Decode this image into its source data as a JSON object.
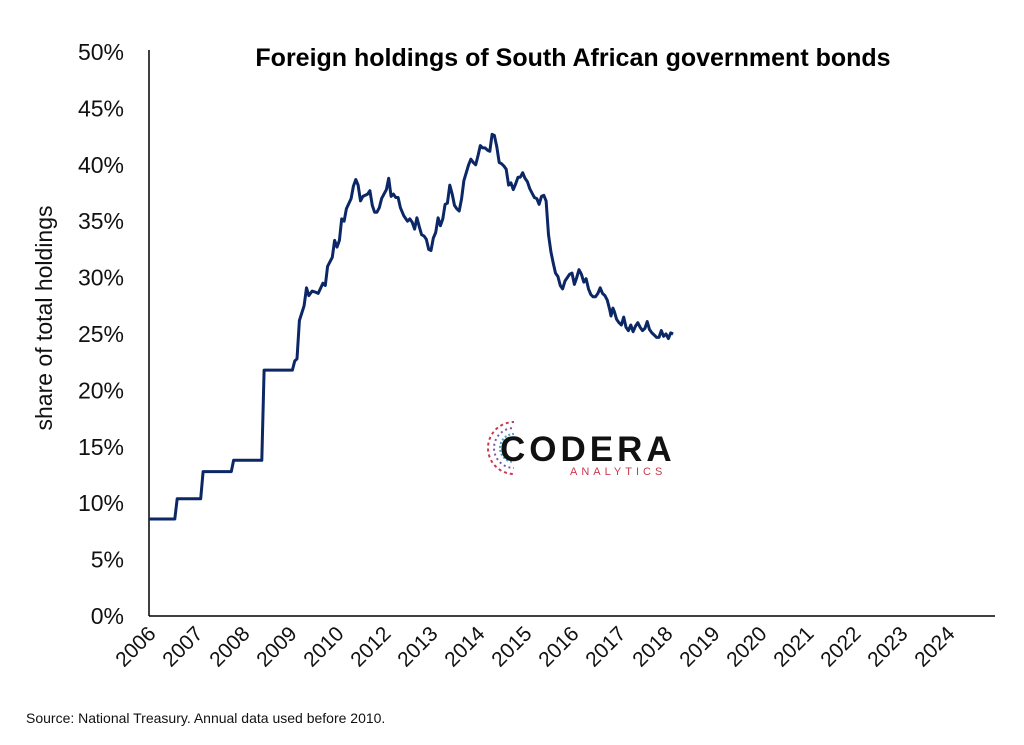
{
  "chart_data": {
    "type": "line",
    "title": "Foreign holdings of South African government bonds",
    "ylabel": "share of total holdings",
    "xlabel": "",
    "ylim": [
      0,
      50
    ],
    "y_ticks": [
      "0%",
      "5%",
      "10%",
      "15%",
      "20%",
      "25%",
      "30%",
      "35%",
      "40%",
      "45%",
      "50%"
    ],
    "x_ticks": [
      "2006",
      "2007",
      "2008",
      "2009",
      "2010",
      "2012",
      "2013",
      "2014",
      "2015",
      "2016",
      "2017",
      "2018",
      "2019",
      "2020",
      "2021",
      "2022",
      "2023",
      "2024"
    ],
    "grid": false,
    "legend": "none",
    "series": [
      {
        "color": "#0b2765",
        "points": [
          [
            0,
            8.6
          ],
          [
            0.55,
            8.6
          ],
          [
            0.6,
            10.4
          ],
          [
            1.1,
            10.4
          ],
          [
            1.15,
            12.8
          ],
          [
            1.75,
            12.8
          ],
          [
            1.8,
            13.8
          ],
          [
            2.4,
            13.8
          ],
          [
            2.45,
            21.8
          ],
          [
            3.05,
            21.8
          ],
          [
            3.1,
            22.6
          ],
          [
            3.15,
            22.8
          ],
          [
            3.2,
            26.2
          ],
          [
            3.3,
            27.5
          ],
          [
            3.35,
            29.1
          ],
          [
            3.4,
            28.4
          ],
          [
            3.47,
            28.8
          ],
          [
            3.55,
            28.7
          ],
          [
            3.6,
            28.6
          ],
          [
            3.7,
            29.5
          ],
          [
            3.75,
            29.3
          ],
          [
            3.8,
            31.0
          ],
          [
            3.9,
            31.8
          ],
          [
            3.95,
            33.3
          ],
          [
            4.0,
            32.7
          ],
          [
            4.05,
            33.3
          ],
          [
            4.1,
            35.2
          ],
          [
            4.15,
            35.0
          ],
          [
            4.2,
            36.1
          ],
          [
            4.3,
            37.0
          ],
          [
            4.35,
            38.1
          ],
          [
            4.4,
            38.7
          ],
          [
            4.45,
            38.2
          ],
          [
            4.5,
            36.8
          ],
          [
            4.55,
            37.2
          ],
          [
            4.65,
            37.4
          ],
          [
            4.7,
            37.7
          ],
          [
            4.75,
            36.4
          ],
          [
            4.8,
            35.8
          ],
          [
            4.85,
            35.8
          ],
          [
            4.9,
            36.2
          ],
          [
            4.95,
            37.0
          ],
          [
            5.05,
            37.8
          ],
          [
            5.1,
            38.8
          ],
          [
            5.15,
            37.2
          ],
          [
            5.2,
            37.4
          ],
          [
            5.25,
            37.1
          ],
          [
            5.3,
            37.1
          ],
          [
            5.35,
            36.2
          ],
          [
            5.42,
            35.5
          ],
          [
            5.5,
            35.0
          ],
          [
            5.55,
            35.2
          ],
          [
            5.6,
            34.9
          ],
          [
            5.65,
            34.3
          ],
          [
            5.7,
            35.3
          ],
          [
            5.75,
            34.5
          ],
          [
            5.8,
            33.8
          ],
          [
            5.85,
            33.7
          ],
          [
            5.9,
            33.4
          ],
          [
            5.95,
            32.5
          ],
          [
            6.0,
            32.4
          ],
          [
            6.05,
            33.5
          ],
          [
            6.1,
            34.0
          ],
          [
            6.15,
            35.3
          ],
          [
            6.2,
            34.6
          ],
          [
            6.25,
            35.2
          ],
          [
            6.3,
            36.5
          ],
          [
            6.35,
            36.6
          ],
          [
            6.4,
            38.2
          ],
          [
            6.45,
            37.4
          ],
          [
            6.5,
            36.4
          ],
          [
            6.55,
            36.1
          ],
          [
            6.6,
            35.9
          ],
          [
            6.65,
            37.0
          ],
          [
            6.7,
            38.6
          ],
          [
            6.8,
            40.0
          ],
          [
            6.85,
            40.5
          ],
          [
            6.9,
            40.2
          ],
          [
            6.95,
            40.0
          ],
          [
            7.0,
            40.8
          ],
          [
            7.05,
            41.7
          ],
          [
            7.1,
            41.5
          ],
          [
            7.15,
            41.5
          ],
          [
            7.2,
            41.3
          ],
          [
            7.25,
            41.2
          ],
          [
            7.3,
            42.7
          ],
          [
            7.35,
            42.6
          ],
          [
            7.4,
            41.6
          ],
          [
            7.45,
            40.2
          ],
          [
            7.5,
            40.1
          ],
          [
            7.55,
            39.9
          ],
          [
            7.6,
            39.6
          ],
          [
            7.65,
            38.2
          ],
          [
            7.7,
            38.4
          ],
          [
            7.75,
            37.8
          ],
          [
            7.8,
            38.3
          ],
          [
            7.85,
            38.9
          ],
          [
            7.9,
            38.9
          ],
          [
            7.95,
            39.3
          ],
          [
            8.0,
            38.8
          ],
          [
            8.05,
            38.5
          ],
          [
            8.1,
            37.9
          ],
          [
            8.15,
            37.5
          ],
          [
            8.2,
            37.1
          ],
          [
            8.25,
            37.0
          ],
          [
            8.3,
            36.5
          ],
          [
            8.35,
            37.2
          ],
          [
            8.4,
            37.3
          ],
          [
            8.45,
            36.8
          ],
          [
            8.5,
            33.8
          ],
          [
            8.55,
            32.3
          ],
          [
            8.6,
            31.3
          ],
          [
            8.65,
            30.4
          ],
          [
            8.7,
            30.1
          ],
          [
            8.75,
            29.3
          ],
          [
            8.8,
            29.0
          ],
          [
            8.85,
            29.7
          ],
          [
            8.9,
            30.0
          ],
          [
            8.95,
            30.3
          ],
          [
            9.0,
            30.4
          ],
          [
            9.05,
            29.4
          ],
          [
            9.1,
            30.0
          ],
          [
            9.15,
            30.7
          ],
          [
            9.2,
            30.3
          ],
          [
            9.25,
            29.6
          ],
          [
            9.3,
            29.9
          ],
          [
            9.35,
            29.0
          ],
          [
            9.4,
            28.5
          ],
          [
            9.45,
            28.3
          ],
          [
            9.5,
            28.3
          ],
          [
            9.55,
            28.6
          ],
          [
            9.6,
            29.1
          ],
          [
            9.65,
            28.6
          ],
          [
            9.7,
            28.4
          ],
          [
            9.75,
            28.0
          ],
          [
            9.8,
            27.2
          ],
          [
            9.83,
            26.6
          ],
          [
            9.87,
            27.3
          ],
          [
            9.9,
            27.0
          ],
          [
            9.95,
            26.3
          ],
          [
            10.0,
            26.0
          ],
          [
            10.05,
            25.8
          ],
          [
            10.1,
            26.5
          ],
          [
            10.15,
            25.6
          ],
          [
            10.2,
            25.3
          ],
          [
            10.25,
            25.8
          ],
          [
            10.3,
            25.2
          ],
          [
            10.35,
            25.7
          ],
          [
            10.4,
            26.0
          ],
          [
            10.45,
            25.6
          ],
          [
            10.5,
            25.3
          ],
          [
            10.55,
            25.5
          ],
          [
            10.6,
            26.1
          ],
          [
            10.65,
            25.4
          ],
          [
            10.7,
            25.1
          ],
          [
            10.75,
            24.9
          ],
          [
            10.8,
            24.7
          ],
          [
            10.85,
            24.7
          ],
          [
            10.9,
            25.3
          ],
          [
            10.95,
            24.8
          ],
          [
            11.0,
            25.0
          ],
          [
            11.05,
            24.6
          ],
          [
            11.1,
            25.1
          ],
          [
            11.15,
            25.0
          ]
        ]
      }
    ]
  },
  "logo": {
    "name": "CODERA",
    "tagline": "ANALYTICS"
  },
  "source_note": "Source: National Treasury. Annual data used before 2010."
}
